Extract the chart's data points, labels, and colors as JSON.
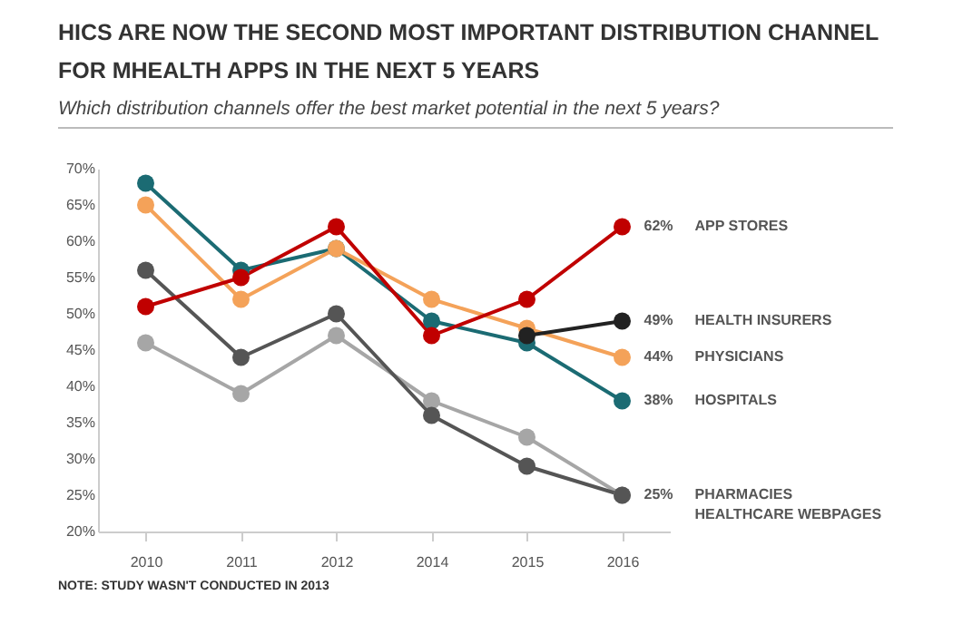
{
  "chart_data": {
    "type": "line",
    "title": "HICS ARE NOW THE SECOND MOST IMPORTANT DISTRIBUTION CHANNEL FOR MHEALTH APPS IN THE NEXT 5 YEARS",
    "subtitle": "Which distribution channels offer the best market potential in the next 5 years?",
    "categories": [
      "2010",
      "2011",
      "2012",
      "2014",
      "2015",
      "2016"
    ],
    "series": [
      {
        "name": "APP STORES",
        "color": "#c00000",
        "values": [
          51,
          55,
          62,
          47,
          52,
          62
        ],
        "value_labels": [
          null,
          null,
          null,
          null,
          null,
          "62%"
        ]
      },
      {
        "name": "HEALTH INSURERS",
        "color": "#222222",
        "values": [
          null,
          null,
          null,
          null,
          47,
          49
        ],
        "value_labels": [
          null,
          null,
          null,
          null,
          null,
          "49%"
        ]
      },
      {
        "name": "PHYSICIANS",
        "color": "#f4a259",
        "values": [
          65,
          52,
          59,
          52,
          48,
          44
        ],
        "value_labels": [
          null,
          null,
          null,
          null,
          null,
          "44%"
        ]
      },
      {
        "name": "HOSPITALS",
        "color": "#1b6b73",
        "values": [
          68,
          56,
          59,
          49,
          46,
          38
        ],
        "value_labels": [
          null,
          null,
          null,
          null,
          null,
          "38%"
        ]
      },
      {
        "name": "PHARMACIES",
        "color": "#555555",
        "values": [
          56,
          44,
          50,
          36,
          29,
          25
        ],
        "value_labels": [
          null,
          null,
          null,
          null,
          null,
          "25%"
        ]
      },
      {
        "name": "HEALTHCARE WEBPAGES",
        "color": "#a6a6a6",
        "values": [
          46,
          39,
          47,
          38,
          33,
          25
        ],
        "value_labels": [
          null,
          null,
          null,
          null,
          null,
          null
        ]
      }
    ],
    "ylim": [
      20,
      70
    ],
    "yticks": [
      {
        "value": 20,
        "label": "20%"
      },
      {
        "value": 25,
        "label": "25%"
      },
      {
        "value": 30,
        "label": "30%"
      },
      {
        "value": 35,
        "label": "35%"
      },
      {
        "value": 40,
        "label": "40%"
      },
      {
        "value": 45,
        "label": "45%"
      },
      {
        "value": 50,
        "label": "50%"
      },
      {
        "value": 55,
        "label": "55%"
      },
      {
        "value": 60,
        "label": "60%"
      },
      {
        "value": 65,
        "label": "65%"
      },
      {
        "value": 70,
        "label": "70%"
      }
    ],
    "grid": false,
    "legend": false,
    "marker": "circle",
    "line_style": "solid",
    "annotations": [
      "NOTE: STUDY WASN'T CONDUCTED IN 2013"
    ]
  }
}
